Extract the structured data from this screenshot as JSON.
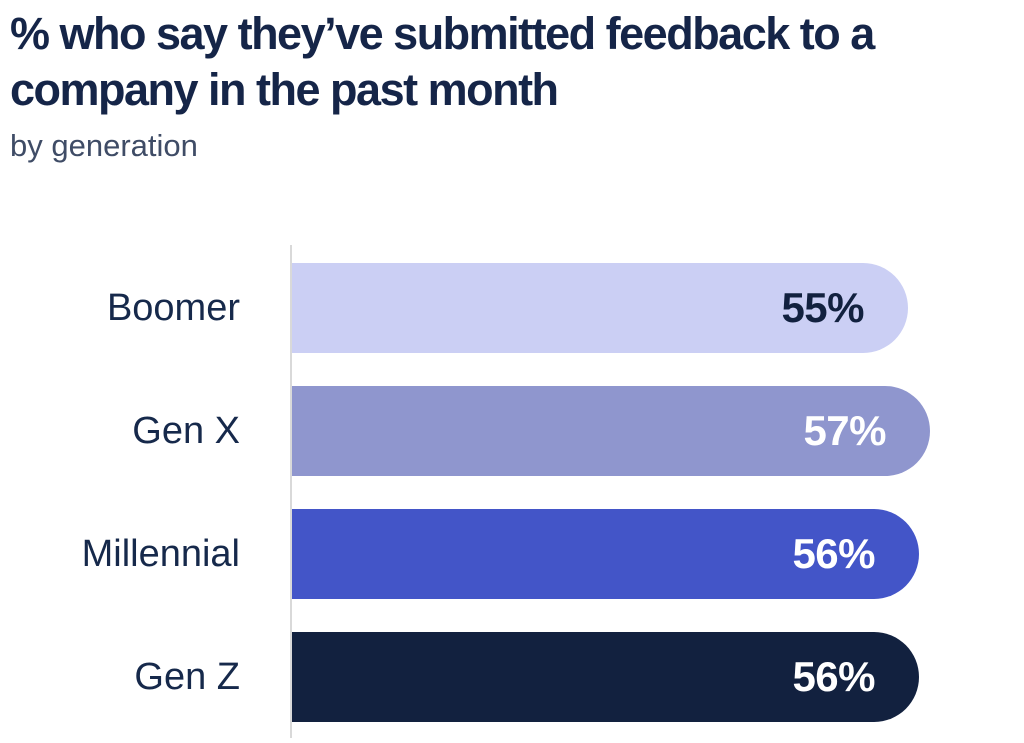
{
  "header": {
    "title": "% who say they’ve submitted feedback to a company in the past month",
    "subtitle": "by generation"
  },
  "chart_data": {
    "type": "bar",
    "orientation": "horizontal",
    "title": "% who say they’ve submitted feedback to a company in the past month",
    "subtitle": "by generation",
    "categories": [
      "Boomer",
      "Gen X",
      "Millennial",
      "Gen Z"
    ],
    "values": [
      55,
      57,
      56,
      56
    ],
    "value_labels": [
      "55%",
      "57%",
      "56%",
      "56%"
    ],
    "bar_colors": [
      "#CBCFF4",
      "#8F96CE",
      "#4355C8",
      "#12213F"
    ],
    "value_label_colors": [
      "#12213F",
      "#FFFFFF",
      "#FFFFFF",
      "#FFFFFF"
    ],
    "xlabel": "",
    "ylabel": "",
    "xlim": [
      0,
      65
    ],
    "grid": false,
    "legend": false,
    "axis_line_color": "#D9D9D9"
  },
  "colors": {
    "background": "#FFFFFF",
    "title_text": "#152548",
    "subtitle_text": "#3F4C66",
    "category_text": "#16294B",
    "axis_line": "#D9D9D9"
  }
}
